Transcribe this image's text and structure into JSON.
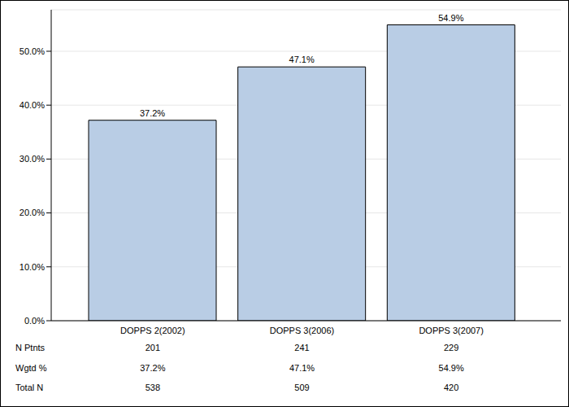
{
  "chart_data": {
    "type": "bar",
    "categories": [
      "DOPPS 2(2002)",
      "DOPPS 3(2006)",
      "DOPPS 3(2007)"
    ],
    "values": [
      37.2,
      47.1,
      54.9
    ],
    "value_labels": [
      "37.2%",
      "47.1%",
      "54.9%"
    ],
    "color": "#b9cde5",
    "ylim": [
      0,
      57.7
    ],
    "yticks": [
      {
        "value": 0,
        "label": "0.0%"
      },
      {
        "value": 10,
        "label": "10.0%"
      },
      {
        "value": 20,
        "label": "20.0%"
      },
      {
        "value": 30,
        "label": "30.0%"
      },
      {
        "value": 40,
        "label": "40.0%"
      },
      {
        "value": 50,
        "label": "50.0%"
      }
    ],
    "grid": true,
    "data_labels": true,
    "table_rows": [
      {
        "name": "N Ptnts",
        "values": [
          201,
          241,
          229
        ]
      },
      {
        "name": "Wgtd %",
        "values": [
          37.2,
          47.1,
          54.9
        ],
        "value_labels": [
          "37.2%",
          "47.1%",
          "54.9%"
        ]
      },
      {
        "name": "Total N",
        "values": [
          538,
          509,
          420
        ]
      }
    ]
  }
}
